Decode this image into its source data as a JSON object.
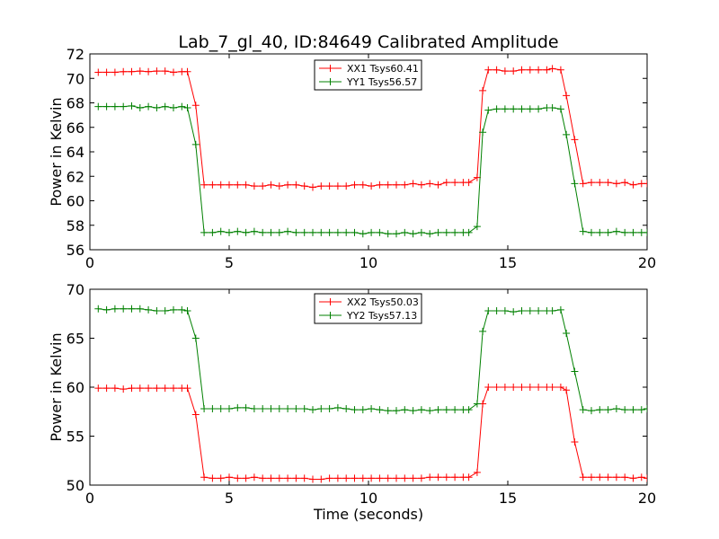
{
  "title": "Lab_7_gl_40, ID:84649 Calibrated Amplitude",
  "chart_data": [
    {
      "type": "line",
      "title": "Lab_7_gl_40, ID:84649 Calibrated Amplitude",
      "xlabel": "",
      "ylabel": "Power in Kelvin",
      "xlim": [
        0,
        20
      ],
      "ylim": [
        56,
        72
      ],
      "xticks": [
        0,
        5,
        10,
        15,
        20
      ],
      "yticks": [
        56,
        58,
        60,
        62,
        64,
        66,
        68,
        70,
        72
      ],
      "legend_position": "top-center",
      "series": [
        {
          "name": "XX1 Tsys60.41",
          "color": "#ff0000",
          "marker": "+",
          "x": [
            0.3,
            0.6,
            0.9,
            1.2,
            1.5,
            1.8,
            2.1,
            2.4,
            2.7,
            3.0,
            3.3,
            3.5,
            3.8,
            4.1,
            4.4,
            4.7,
            5.0,
            5.3,
            5.6,
            5.9,
            6.2,
            6.5,
            6.8,
            7.1,
            7.4,
            7.7,
            8.0,
            8.3,
            8.6,
            8.9,
            9.2,
            9.5,
            9.8,
            10.1,
            10.4,
            10.7,
            11.0,
            11.3,
            11.6,
            11.9,
            12.2,
            12.5,
            12.8,
            13.1,
            13.4,
            13.6,
            13.9,
            14.1,
            14.3,
            14.6,
            14.9,
            15.2,
            15.5,
            15.8,
            16.1,
            16.4,
            16.6,
            16.9,
            17.1,
            17.4,
            17.7,
            18.0,
            18.3,
            18.6,
            18.9,
            19.2,
            19.5,
            19.8,
            20.0
          ],
          "y": [
            70.5,
            70.5,
            70.5,
            70.55,
            70.55,
            70.6,
            70.55,
            70.6,
            70.6,
            70.5,
            70.55,
            70.55,
            67.8,
            61.3,
            61.3,
            61.3,
            61.3,
            61.3,
            61.3,
            61.2,
            61.2,
            61.3,
            61.2,
            61.3,
            61.3,
            61.2,
            61.1,
            61.2,
            61.2,
            61.2,
            61.2,
            61.3,
            61.3,
            61.2,
            61.3,
            61.3,
            61.3,
            61.3,
            61.4,
            61.3,
            61.4,
            61.3,
            61.5,
            61.5,
            61.5,
            61.5,
            61.9,
            69.0,
            70.7,
            70.7,
            70.6,
            70.6,
            70.7,
            70.7,
            70.7,
            70.7,
            70.8,
            70.7,
            68.6,
            65.0,
            61.4,
            61.5,
            61.5,
            61.5,
            61.4,
            61.5,
            61.3,
            61.4,
            61.4
          ]
        },
        {
          "name": "YY1 Tsys56.57",
          "color": "#008000",
          "marker": "+",
          "x": [
            0.3,
            0.6,
            0.9,
            1.2,
            1.5,
            1.8,
            2.1,
            2.4,
            2.7,
            3.0,
            3.3,
            3.5,
            3.8,
            4.1,
            4.4,
            4.7,
            5.0,
            5.3,
            5.6,
            5.9,
            6.2,
            6.5,
            6.8,
            7.1,
            7.4,
            7.7,
            8.0,
            8.3,
            8.6,
            8.9,
            9.2,
            9.5,
            9.8,
            10.1,
            10.4,
            10.7,
            11.0,
            11.3,
            11.6,
            11.9,
            12.2,
            12.5,
            12.8,
            13.1,
            13.4,
            13.6,
            13.9,
            14.1,
            14.3,
            14.6,
            14.9,
            15.2,
            15.5,
            15.8,
            16.1,
            16.4,
            16.6,
            16.9,
            17.1,
            17.4,
            17.7,
            18.0,
            18.3,
            18.6,
            18.9,
            19.2,
            19.5,
            19.8,
            20.0
          ],
          "y": [
            67.7,
            67.7,
            67.7,
            67.7,
            67.75,
            67.6,
            67.7,
            67.6,
            67.7,
            67.6,
            67.7,
            67.6,
            64.6,
            57.4,
            57.4,
            57.5,
            57.4,
            57.5,
            57.4,
            57.5,
            57.4,
            57.4,
            57.4,
            57.5,
            57.4,
            57.4,
            57.4,
            57.4,
            57.4,
            57.4,
            57.4,
            57.4,
            57.3,
            57.4,
            57.4,
            57.3,
            57.3,
            57.4,
            57.3,
            57.4,
            57.3,
            57.4,
            57.4,
            57.4,
            57.4,
            57.4,
            57.9,
            65.6,
            67.4,
            67.5,
            67.5,
            67.5,
            67.5,
            67.5,
            67.5,
            67.6,
            67.6,
            67.5,
            65.4,
            61.4,
            57.5,
            57.4,
            57.4,
            57.4,
            57.5,
            57.4,
            57.4,
            57.4,
            57.4
          ]
        }
      ]
    },
    {
      "type": "line",
      "title": "",
      "xlabel": "Time (seconds)",
      "ylabel": "Power in Kelvin",
      "xlim": [
        0,
        20
      ],
      "ylim": [
        50,
        70
      ],
      "xticks": [
        0,
        5,
        10,
        15,
        20
      ],
      "yticks": [
        50,
        55,
        60,
        65,
        70
      ],
      "legend_position": "top-center",
      "series": [
        {
          "name": "XX2 Tsys50.03",
          "color": "#ff0000",
          "marker": "+",
          "x": [
            0.3,
            0.6,
            0.9,
            1.2,
            1.5,
            1.8,
            2.1,
            2.4,
            2.7,
            3.0,
            3.3,
            3.5,
            3.8,
            4.1,
            4.4,
            4.7,
            5.0,
            5.3,
            5.6,
            5.9,
            6.2,
            6.5,
            6.8,
            7.1,
            7.4,
            7.7,
            8.0,
            8.3,
            8.6,
            8.9,
            9.2,
            9.5,
            9.8,
            10.1,
            10.4,
            10.7,
            11.0,
            11.3,
            11.6,
            11.9,
            12.2,
            12.5,
            12.8,
            13.1,
            13.4,
            13.6,
            13.9,
            14.1,
            14.3,
            14.6,
            14.9,
            15.2,
            15.5,
            15.8,
            16.1,
            16.4,
            16.6,
            16.9,
            17.1,
            17.4,
            17.7,
            18.0,
            18.3,
            18.6,
            18.9,
            19.2,
            19.5,
            19.8,
            20.0
          ],
          "y": [
            59.9,
            59.9,
            59.9,
            59.8,
            59.9,
            59.9,
            59.9,
            59.9,
            59.9,
            59.9,
            59.9,
            59.9,
            57.2,
            50.8,
            50.7,
            50.7,
            50.8,
            50.7,
            50.7,
            50.8,
            50.7,
            50.7,
            50.7,
            50.7,
            50.7,
            50.7,
            50.6,
            50.6,
            50.7,
            50.7,
            50.7,
            50.7,
            50.7,
            50.7,
            50.7,
            50.7,
            50.7,
            50.7,
            50.7,
            50.7,
            50.8,
            50.8,
            50.8,
            50.8,
            50.8,
            50.8,
            51.3,
            58.3,
            60.0,
            60.0,
            60.0,
            60.0,
            60.0,
            60.0,
            60.0,
            60.0,
            60.0,
            60.0,
            59.7,
            54.4,
            50.8,
            50.8,
            50.8,
            50.8,
            50.8,
            50.8,
            50.7,
            50.8,
            50.7
          ]
        },
        {
          "name": "YY2 Tsys57.13",
          "color": "#008000",
          "marker": "+",
          "x": [
            0.3,
            0.6,
            0.9,
            1.2,
            1.5,
            1.8,
            2.1,
            2.4,
            2.7,
            3.0,
            3.3,
            3.5,
            3.8,
            4.1,
            4.4,
            4.7,
            5.0,
            5.3,
            5.6,
            5.9,
            6.2,
            6.5,
            6.8,
            7.1,
            7.4,
            7.7,
            8.0,
            8.3,
            8.6,
            8.9,
            9.2,
            9.5,
            9.8,
            10.1,
            10.4,
            10.7,
            11.0,
            11.3,
            11.6,
            11.9,
            12.2,
            12.5,
            12.8,
            13.1,
            13.4,
            13.6,
            13.9,
            14.1,
            14.3,
            14.6,
            14.9,
            15.2,
            15.5,
            15.8,
            16.1,
            16.4,
            16.6,
            16.9,
            17.1,
            17.4,
            17.7,
            18.0,
            18.3,
            18.6,
            18.9,
            19.2,
            19.5,
            19.8,
            20.0
          ],
          "y": [
            68.0,
            67.9,
            68.0,
            68.0,
            68.0,
            68.0,
            67.9,
            67.8,
            67.8,
            67.9,
            67.9,
            67.8,
            65.0,
            57.8,
            57.8,
            57.8,
            57.8,
            57.9,
            57.9,
            57.8,
            57.8,
            57.8,
            57.8,
            57.8,
            57.8,
            57.8,
            57.7,
            57.8,
            57.8,
            57.9,
            57.8,
            57.7,
            57.7,
            57.8,
            57.7,
            57.6,
            57.6,
            57.7,
            57.6,
            57.7,
            57.6,
            57.7,
            57.7,
            57.7,
            57.7,
            57.7,
            58.3,
            65.7,
            67.8,
            67.8,
            67.8,
            67.7,
            67.8,
            67.8,
            67.8,
            67.8,
            67.8,
            67.9,
            65.5,
            61.6,
            57.7,
            57.6,
            57.7,
            57.7,
            57.8,
            57.7,
            57.7,
            57.7,
            57.8
          ]
        }
      ]
    }
  ]
}
